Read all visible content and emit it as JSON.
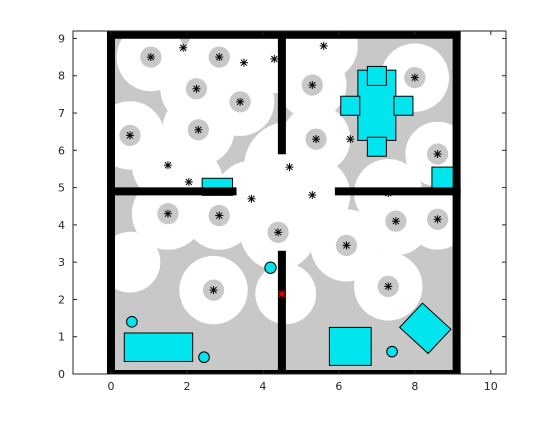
{
  "chart_data": {
    "type": "scatter",
    "title": "",
    "xlabel": "",
    "ylabel": "",
    "xlim": [
      -1,
      10.4
    ],
    "ylim": [
      0,
      9.2
    ],
    "xticks": [
      0,
      2,
      4,
      6,
      8,
      10
    ],
    "yticks": [
      0,
      1,
      2,
      3,
      4,
      5,
      6,
      7,
      8,
      9
    ],
    "grid": false,
    "colors": {
      "wall": "#000000",
      "free": "#ffffff",
      "occupied_estimate": "#c8c8c8",
      "obstacle": "#00e5ee",
      "landmark": "#000000",
      "robot": "#ff0000",
      "axis": "#262626"
    },
    "floor_boundary": {
      "x": [
        0,
        9.1
      ],
      "y": [
        0,
        9.1
      ]
    },
    "walls": [
      {
        "x1": 0,
        "y1": 0,
        "x2": 9.1,
        "y2": 0
      },
      {
        "x1": 0,
        "y1": 9.1,
        "x2": 9.1,
        "y2": 9.1
      },
      {
        "x1": 0,
        "y1": 0,
        "x2": 0,
        "y2": 9.1
      },
      {
        "x1": 9.1,
        "y1": 0,
        "x2": 9.1,
        "y2": 9.1
      },
      {
        "x1": 0,
        "y1": 4.9,
        "x2": 3.2,
        "y2": 4.9
      },
      {
        "x1": 6.0,
        "y1": 4.9,
        "x2": 9.1,
        "y2": 4.9
      },
      {
        "x1": 4.5,
        "y1": 6.0,
        "x2": 4.5,
        "y2": 9.1
      },
      {
        "x1": 4.5,
        "y1": 0,
        "x2": 4.5,
        "y2": 3.2
      }
    ],
    "landmarks": [
      [
        1.05,
        8.5
      ],
      [
        1.9,
        8.75
      ],
      [
        2.85,
        8.5
      ],
      [
        3.5,
        8.35
      ],
      [
        4.3,
        8.45
      ],
      [
        5.6,
        8.8
      ],
      [
        2.25,
        7.65
      ],
      [
        3.4,
        7.3
      ],
      [
        5.3,
        7.75
      ],
      [
        8.0,
        7.95
      ],
      [
        0.5,
        6.4
      ],
      [
        2.3,
        6.55
      ],
      [
        5.4,
        6.3
      ],
      [
        6.3,
        6.3
      ],
      [
        1.5,
        5.6
      ],
      [
        2.05,
        5.15
      ],
      [
        4.7,
        5.55
      ],
      [
        8.6,
        5.9
      ],
      [
        3.7,
        4.7
      ],
      [
        5.3,
        4.8
      ],
      [
        7.3,
        4.85
      ],
      [
        1.5,
        4.3
      ],
      [
        2.85,
        4.25
      ],
      [
        4.4,
        3.8
      ],
      [
        7.5,
        4.1
      ],
      [
        8.6,
        4.15
      ],
      [
        6.2,
        3.45
      ],
      [
        2.7,
        2.25
      ],
      [
        7.3,
        2.35
      ]
    ],
    "robot": [
      4.5,
      2.15
    ],
    "free_space_circles": [
      {
        "center": [
          1.05,
          8.5
        ],
        "radius": 0.9
      },
      {
        "center": [
          2.85,
          8.5
        ],
        "radius": 0.9
      },
      {
        "center": [
          4.3,
          8.45
        ],
        "radius": 0.9
      },
      {
        "center": [
          5.6,
          8.8
        ],
        "radius": 0.9
      },
      {
        "center": [
          2.25,
          7.65
        ],
        "radius": 0.95
      },
      {
        "center": [
          3.4,
          7.3
        ],
        "radius": 0.9
      },
      {
        "center": [
          5.3,
          7.75
        ],
        "radius": 0.9
      },
      {
        "center": [
          8.0,
          7.95
        ],
        "radius": 0.9
      },
      {
        "center": [
          0.5,
          6.4
        ],
        "radius": 0.9
      },
      {
        "center": [
          2.3,
          6.55
        ],
        "radius": 0.95
      },
      {
        "center": [
          5.4,
          6.3
        ],
        "radius": 0.9
      },
      {
        "center": [
          1.5,
          5.6
        ],
        "radius": 0.95
      },
      {
        "center": [
          2.05,
          5.15
        ],
        "radius": 0.9
      },
      {
        "center": [
          4.7,
          5.55
        ],
        "radius": 1.2
      },
      {
        "center": [
          8.6,
          5.9
        ],
        "radius": 0.85
      },
      {
        "center": [
          3.7,
          4.7
        ],
        "radius": 1.0
      },
      {
        "center": [
          5.3,
          4.8
        ],
        "radius": 1.0
      },
      {
        "center": [
          7.3,
          4.85
        ],
        "radius": 0.9
      },
      {
        "center": [
          1.5,
          4.3
        ],
        "radius": 0.95
      },
      {
        "center": [
          2.85,
          4.25
        ],
        "radius": 0.9
      },
      {
        "center": [
          4.4,
          3.8
        ],
        "radius": 1.0
      },
      {
        "center": [
          7.5,
          4.1
        ],
        "radius": 0.9
      },
      {
        "center": [
          8.6,
          4.15
        ],
        "radius": 0.8
      },
      {
        "center": [
          6.2,
          3.45
        ],
        "radius": 0.95
      },
      {
        "center": [
          2.7,
          2.25
        ],
        "radius": 0.9
      },
      {
        "center": [
          7.3,
          2.35
        ],
        "radius": 0.9
      },
      {
        "center": [
          4.6,
          2.15
        ],
        "radius": 0.8
      },
      {
        "center": [
          0.5,
          3.0
        ],
        "radius": 0.8
      }
    ],
    "occupied_inner_circles": [
      {
        "center": [
          1.05,
          8.5
        ],
        "radius": 0.28
      },
      {
        "center": [
          2.85,
          8.5
        ],
        "radius": 0.28
      },
      {
        "center": [
          2.25,
          7.65
        ],
        "radius": 0.28
      },
      {
        "center": [
          3.4,
          7.3
        ],
        "radius": 0.28
      },
      {
        "center": [
          5.3,
          7.75
        ],
        "radius": 0.28
      },
      {
        "center": [
          8.0,
          7.95
        ],
        "radius": 0.28
      },
      {
        "center": [
          0.5,
          6.4
        ],
        "radius": 0.28
      },
      {
        "center": [
          2.3,
          6.55
        ],
        "radius": 0.28
      },
      {
        "center": [
          5.4,
          6.3
        ],
        "radius": 0.28
      },
      {
        "center": [
          8.6,
          5.9
        ],
        "radius": 0.28
      },
      {
        "center": [
          1.5,
          4.3
        ],
        "radius": 0.28
      },
      {
        "center": [
          2.85,
          4.25
        ],
        "radius": 0.28
      },
      {
        "center": [
          4.4,
          3.8
        ],
        "radius": 0.28
      },
      {
        "center": [
          7.5,
          4.1
        ],
        "radius": 0.28
      },
      {
        "center": [
          8.6,
          4.15
        ],
        "radius": 0.28
      },
      {
        "center": [
          6.2,
          3.45
        ],
        "radius": 0.28
      },
      {
        "center": [
          2.7,
          2.25
        ],
        "radius": 0.28
      },
      {
        "center": [
          7.3,
          2.35
        ],
        "radius": 0.28
      }
    ],
    "obstacles": [
      {
        "shape": "rect",
        "x": 0.35,
        "y": 0.35,
        "w": 1.8,
        "h": 0.75
      },
      {
        "shape": "rect",
        "x": 2.4,
        "y": 4.8,
        "w": 0.8,
        "h": 0.45
      },
      {
        "shape": "rect",
        "x": 8.45,
        "y": 4.9,
        "w": 0.65,
        "h": 0.65
      },
      {
        "shape": "rect",
        "x": 5.75,
        "y": 0.25,
        "w": 1.1,
        "h": 1.0
      },
      {
        "shape": "rect",
        "x": 6.5,
        "y": 6.3,
        "w": 1.0,
        "h": 1.85
      },
      {
        "shape": "rect",
        "x": 6.05,
        "y": 6.95,
        "w": 0.5,
        "h": 0.5
      },
      {
        "shape": "rect",
        "x": 7.45,
        "y": 6.95,
        "w": 0.5,
        "h": 0.5
      },
      {
        "shape": "rect",
        "x": 6.75,
        "y": 7.75,
        "w": 0.5,
        "h": 0.5
      },
      {
        "shape": "rect",
        "x": 6.75,
        "y": 5.85,
        "w": 0.5,
        "h": 0.5
      },
      {
        "shape": "polygon",
        "points": [
          [
            8.2,
            1.9
          ],
          [
            8.95,
            1.2
          ],
          [
            8.35,
            0.55
          ],
          [
            7.6,
            1.25
          ]
        ]
      },
      {
        "shape": "circle",
        "cx": 0.55,
        "cy": 1.4,
        "r": 0.14
      },
      {
        "shape": "circle",
        "cx": 2.45,
        "cy": 0.45,
        "r": 0.14
      },
      {
        "shape": "circle",
        "cx": 4.2,
        "cy": 2.85,
        "r": 0.15
      },
      {
        "shape": "circle",
        "cx": 7.4,
        "cy": 0.6,
        "r": 0.14
      }
    ]
  }
}
